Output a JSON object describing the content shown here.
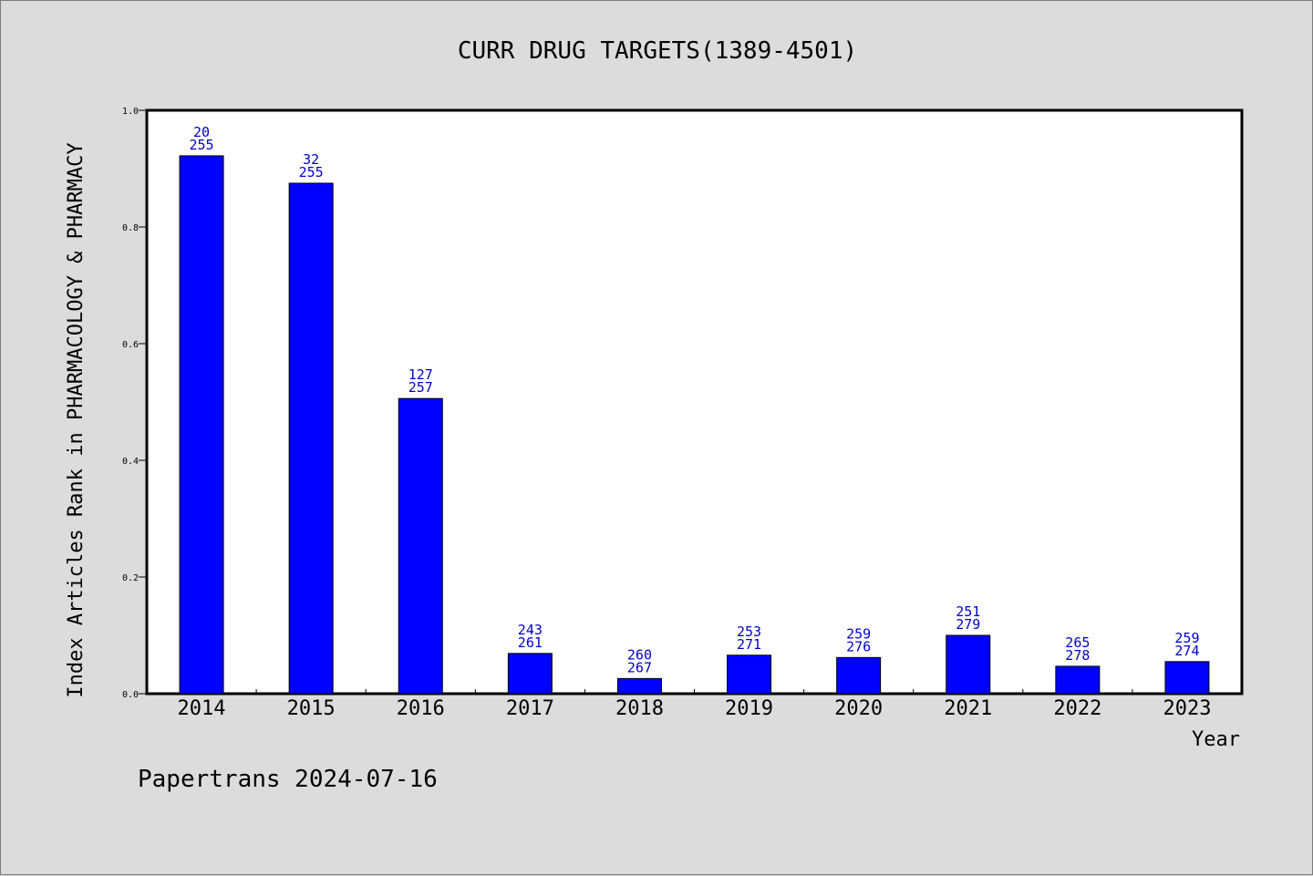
{
  "chart_data": {
    "type": "bar",
    "title": "CURR DRUG TARGETS(1389-4501)",
    "xlabel": "Year",
    "ylabel": "Index Articles Rank in PHARMACOLOGY & PHARMACY",
    "ylim": [
      0,
      1.0
    ],
    "yticks": [
      "0.0",
      "0.2",
      "0.4",
      "0.6",
      "0.8",
      "1.0"
    ],
    "grid": false,
    "categories": [
      "2014",
      "2015",
      "2016",
      "2017",
      "2018",
      "2019",
      "2020",
      "2021",
      "2022",
      "2023"
    ],
    "values": [
      0.922,
      0.875,
      0.506,
      0.069,
      0.026,
      0.066,
      0.062,
      0.1,
      0.047,
      0.055
    ],
    "rank_labels": [
      "20",
      "32",
      "127",
      "243",
      "260",
      "253",
      "259",
      "251",
      "265",
      "259"
    ],
    "total_labels": [
      "255",
      "255",
      "257",
      "261",
      "267",
      "271",
      "276",
      "279",
      "278",
      "274"
    ],
    "bar_color": "#0000ff",
    "label_color": "#0000cc"
  },
  "footer": {
    "text": "Papertrans 2024-07-16"
  }
}
